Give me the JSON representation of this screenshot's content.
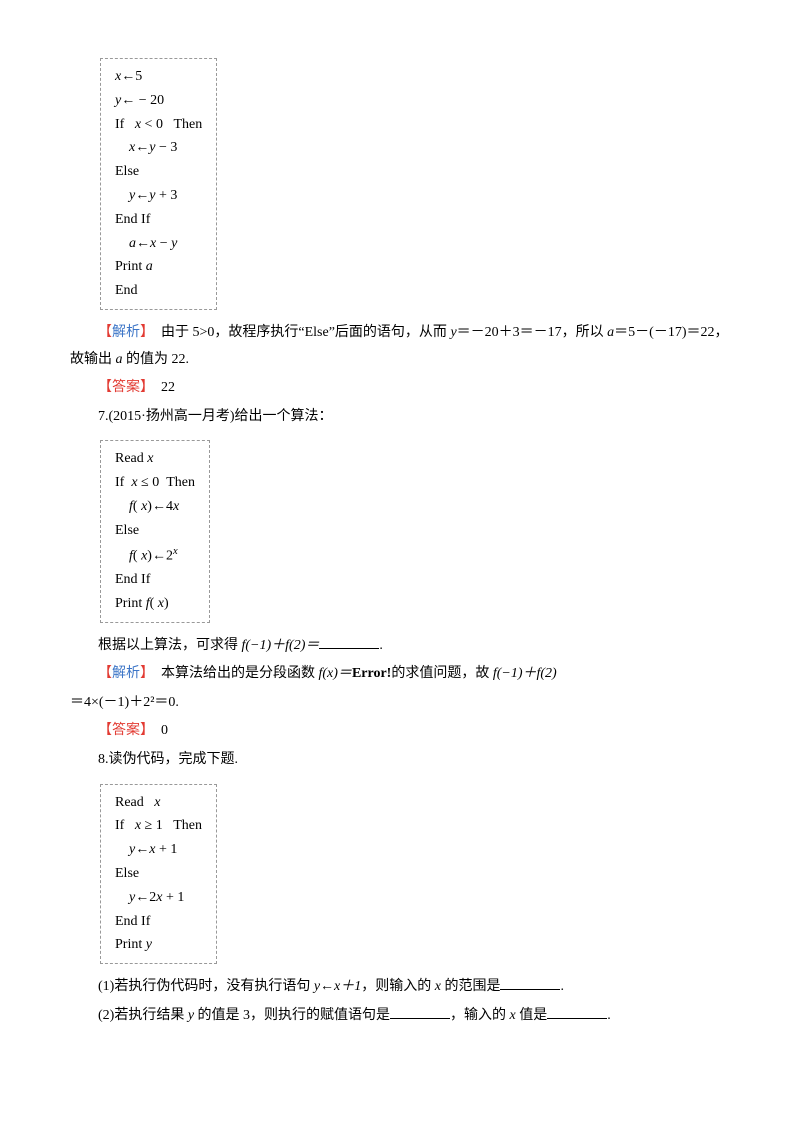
{
  "colors": {
    "text": "#000000",
    "background": "#ffffff",
    "analysis_label": "#3c75c7",
    "answer_label": "#e23a32",
    "bracket_red": "#e23a32",
    "code_border": "#999999"
  },
  "typography": {
    "body_fontsize": 14,
    "body_font": "SimSun",
    "code_font": "Times New Roman",
    "line_height": 1.9
  },
  "code_box_1": {
    "lines": [
      "x←5",
      "y← − 20",
      "If   x < 0   Then",
      "    x←y − 3",
      "Else",
      "    y←y + 3",
      "End If",
      "    a←x − y",
      "Print a",
      "End"
    ]
  },
  "analysis_1": {
    "label": "解析",
    "text_a": "　由于 5>0，故程序执行“Else”后面的语句，从而 ",
    "text_b": "＝－20＋3＝－17，所以 ",
    "text_c": "＝5－(－17)＝22，故输出 ",
    "text_d": " 的值为 22."
  },
  "answer_1": {
    "label": "答案",
    "value": "　22"
  },
  "q7": {
    "prefix": "7.(2015·扬州高一月考)给出一个算法："
  },
  "code_box_2": {
    "lines": [
      "Read x",
      "If  x ≤ 0  Then",
      "    f( x)←4x",
      "Else",
      "    f( x)←2ˣ",
      "End If",
      "Print f( x)"
    ]
  },
  "q7_tail": {
    "text_a": "根据以上算法，可求得 ",
    "expr": "f(−1)＋f(2)＝",
    "text_b": "."
  },
  "analysis_2": {
    "label": "解析",
    "text_a": "　本算法给出的是分段函数 ",
    "text_b": "f(x)＝",
    "error": "Error!",
    "text_c": "的求值问题，故 ",
    "text_d": "f(−1)＋f(2)",
    "text_e": "＝4×(－1)＋2²＝0."
  },
  "answer_2": {
    "label": "答案",
    "value": "　0"
  },
  "q8": {
    "prefix": "8.读伪代码，完成下题."
  },
  "code_box_3": {
    "lines": [
      "Read   x",
      "If   x ≥ 1   Then",
      "    y←x + 1",
      "Else",
      "    y←2x + 1",
      "End If",
      "Print y"
    ]
  },
  "q8_sub1": {
    "text_a": "(1)若执行伪代码时，没有执行语句 ",
    "expr": "y←x＋1",
    "text_b": "，则输入的 ",
    "text_c": " 的范围是",
    "text_d": "."
  },
  "q8_sub2": {
    "text_a": "(2)若执行结果 ",
    "text_b": " 的值是 3，则执行的赋值语句是",
    "text_c": "，输入的 ",
    "text_d": " 值是",
    "text_e": "."
  },
  "vars": {
    "y": "y",
    "a": "a",
    "x": "x"
  }
}
